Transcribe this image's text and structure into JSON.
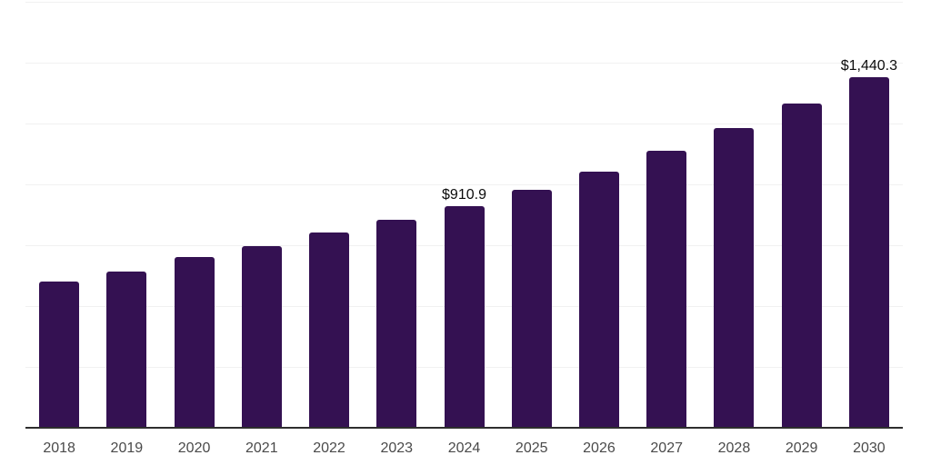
{
  "chart_data": {
    "type": "bar",
    "title": "",
    "xlabel": "",
    "ylabel": "",
    "categories": [
      "2018",
      "2019",
      "2020",
      "2021",
      "2022",
      "2023",
      "2024",
      "2025",
      "2026",
      "2027",
      "2028",
      "2029",
      "2030"
    ],
    "values": [
      601,
      642,
      700,
      748,
      802,
      853,
      910.9,
      979,
      1054,
      1138,
      1233,
      1332,
      1440.3
    ],
    "data_labels": {
      "2024": "$910.9",
      "2030": "$1,440.3"
    },
    "ylim": [
      0,
      1750
    ],
    "grid_step": 250,
    "grid": "horizontal-only",
    "legend_position": "none",
    "y_tick_labels_visible": false,
    "bar_color": "#341152",
    "gridline_color": "#f1f1f1",
    "axis_line_color": "#2e2e2e",
    "x_tick_color": "#4a4a4a",
    "data_label_color": "#0b0b0b",
    "background_color": "#ffffff"
  }
}
